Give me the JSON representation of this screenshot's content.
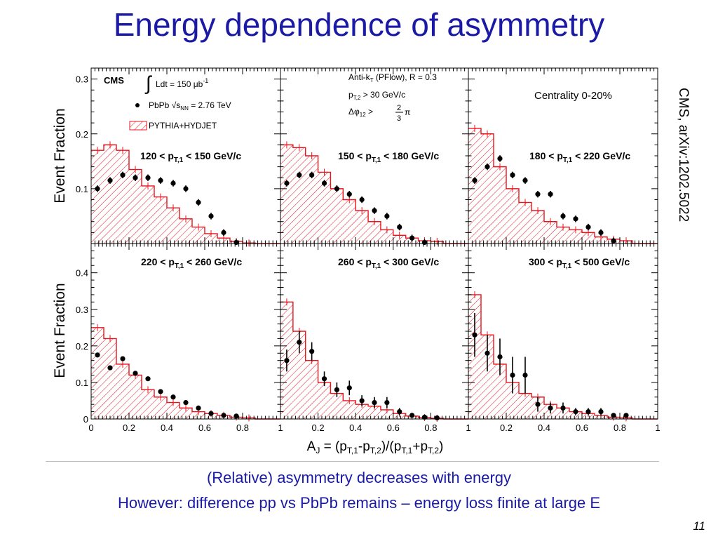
{
  "slide": {
    "title": "Energy dependence of asymmetry",
    "citation": "CMS, arXiv:1202.5022",
    "caption_line1": "(Relative) asymmetry decreases with energy",
    "caption_line2": "However: difference pp vs PbPb remains – energy loss finite at large E",
    "page_number": "11"
  },
  "figure": {
    "ylabel": "Event Fraction",
    "xlabel_parts": {
      "a": "A",
      "j": "J",
      "eq": " = (p",
      "t1": "T,1",
      "m": "-p",
      "t2": "T,2",
      "div": ")/(p",
      "t1b": "T,1",
      "p": "+p",
      "t2b": "T,2",
      "close": ")"
    },
    "colors": {
      "data": "#000000",
      "mc": "#e8141c",
      "axis": "#000000"
    },
    "legend": {
      "cms": "CMS",
      "lumi": "Ldt = 150 μb",
      "lumi_sup": "-1",
      "pbpb_a": "PbPb ",
      "pbpb_b": "s",
      "pbpb_sub": "NN",
      "pbpb_c": " = 2.76 TeV",
      "mc": "PYTHIA+HYDJET"
    },
    "selection": {
      "algo_a": "Anti-k",
      "algo_sub": "T",
      "algo_b": " (PFlow), R = 0.3",
      "pt2_a": "p",
      "pt2_sub": "T,2",
      "pt2_b": " > 30 GeV/c",
      "dphi_a": "Δφ",
      "dphi_sub": "12",
      "dphi_b": " > ",
      "dphi_num": "2",
      "dphi_den": "3",
      "dphi_pi": "π"
    },
    "centrality": "Centrality 0-20%"
  },
  "chart_data": {
    "type": "bar",
    "title": "",
    "xlabel": "A_J = (p_T,1-p_T,2)/(p_T,1+p_T,2)",
    "ylabel": "Event Fraction",
    "bin_edges": [
      0,
      0.0667,
      0.1333,
      0.2,
      0.2667,
      0.3333,
      0.4,
      0.4667,
      0.5333,
      0.6,
      0.6667,
      0.7333,
      0.8,
      0.8667,
      0.9333,
      1.0
    ],
    "x_ticks_top_row": [
      "",
      "",
      "",
      "",
      "",
      ""
    ],
    "panels": [
      {
        "label_a": "120 < p",
        "label_sub": "T,1",
        "label_b": " < 150 GeV/c",
        "ylim": [
          0,
          0.32
        ],
        "yticks": [
          "0.1",
          "0.2",
          "0.3"
        ],
        "mc": [
          0.17,
          0.18,
          0.17,
          0.135,
          0.105,
          0.085,
          0.065,
          0.045,
          0.03,
          0.018,
          0.01,
          0.004,
          0.001,
          0,
          0
        ],
        "data": [
          0.1,
          0.115,
          0.125,
          0.12,
          0.12,
          0.115,
          0.11,
          0.1,
          0.075,
          0.05,
          0.02,
          0.002,
          0,
          0,
          0
        ]
      },
      {
        "label_a": "150 < p",
        "label_sub": "T,1",
        "label_b": " < 180 GeV/c",
        "ylim": [
          0,
          0.32
        ],
        "yticks": [],
        "mc": [
          0.18,
          0.175,
          0.16,
          0.13,
          0.1,
          0.08,
          0.06,
          0.04,
          0.025,
          0.015,
          0.01,
          0.005,
          0.004,
          0,
          0
        ],
        "data": [
          0.11,
          0.125,
          0.125,
          0.11,
          0.1,
          0.09,
          0.08,
          0.06,
          0.05,
          0.03,
          0.01,
          0.002,
          0,
          0,
          0
        ]
      },
      {
        "label_a": "180 < p",
        "label_sub": "T,1",
        "label_b": " < 220 GeV/c",
        "ylim": [
          0,
          0.32
        ],
        "yticks": [],
        "mc": [
          0.21,
          0.2,
          0.14,
          0.1,
          0.075,
          0.06,
          0.04,
          0.03,
          0.025,
          0.02,
          0.012,
          0.008,
          0.005,
          0,
          0
        ],
        "data": [
          0.115,
          0.14,
          0.155,
          0.125,
          0.115,
          0.09,
          0.09,
          0.05,
          0.045,
          0.03,
          0.02,
          0.005,
          0,
          0,
          0
        ]
      },
      {
        "label_a": "220 < p",
        "label_sub": "T,1",
        "label_b": " < 260 GeV/c",
        "ylim": [
          0,
          0.48
        ],
        "yticks": [
          "0",
          "0.1",
          "0.2",
          "0.3",
          "0.4"
        ],
        "mc": [
          0.25,
          0.22,
          0.15,
          0.12,
          0.08,
          0.06,
          0.045,
          0.03,
          0.02,
          0.015,
          0.01,
          0.005,
          0.003,
          0,
          0
        ],
        "data": [
          0.175,
          0.14,
          0.165,
          0.125,
          0.11,
          0.075,
          0.06,
          0.045,
          0.03,
          0.015,
          0.01,
          0.008,
          0,
          0,
          0
        ]
      },
      {
        "label_a": "260 < p",
        "label_sub": "T,1",
        "label_b": " < 300 GeV/c",
        "ylim": [
          0,
          0.48
        ],
        "yticks": [],
        "mc": [
          0.32,
          0.24,
          0.16,
          0.1,
          0.07,
          0.05,
          0.04,
          0.035,
          0.025,
          0.015,
          0.008,
          0.004,
          0.002,
          0,
          0
        ],
        "data": [
          0.16,
          0.21,
          0.185,
          0.11,
          0.08,
          0.085,
          0.05,
          0.045,
          0.045,
          0.02,
          0.01,
          0.005,
          0.003,
          0,
          0
        ],
        "err": [
          0.03,
          0.03,
          0.025,
          0.02,
          0.02,
          0.02,
          0.015,
          0.015,
          0.015,
          0.01,
          0.005,
          0.003,
          0.003,
          0,
          0
        ]
      },
      {
        "label_a": "300 < p",
        "label_sub": "T,1",
        "label_b": " < 500 GeV/c",
        "ylim": [
          0,
          0.48
        ],
        "yticks": [],
        "mc": [
          0.34,
          0.23,
          0.15,
          0.1,
          0.07,
          0.06,
          0.04,
          0.03,
          0.02,
          0.015,
          0.01,
          0.005,
          0.003,
          0,
          0
        ],
        "data": [
          0.23,
          0.18,
          0.17,
          0.12,
          0.12,
          0.04,
          0.03,
          0.03,
          0.02,
          0.02,
          0.02,
          0.01,
          0.01,
          0,
          0
        ],
        "err": [
          0.06,
          0.05,
          0.05,
          0.05,
          0.05,
          0.02,
          0.015,
          0.015,
          0.01,
          0.01,
          0.01,
          0.005,
          0.005,
          0,
          0
        ]
      }
    ],
    "xticks": [
      "0",
      "0.2",
      "0.4",
      "0.6",
      "0.8",
      "1"
    ],
    "grid": false,
    "legend_placement": "top-left"
  }
}
